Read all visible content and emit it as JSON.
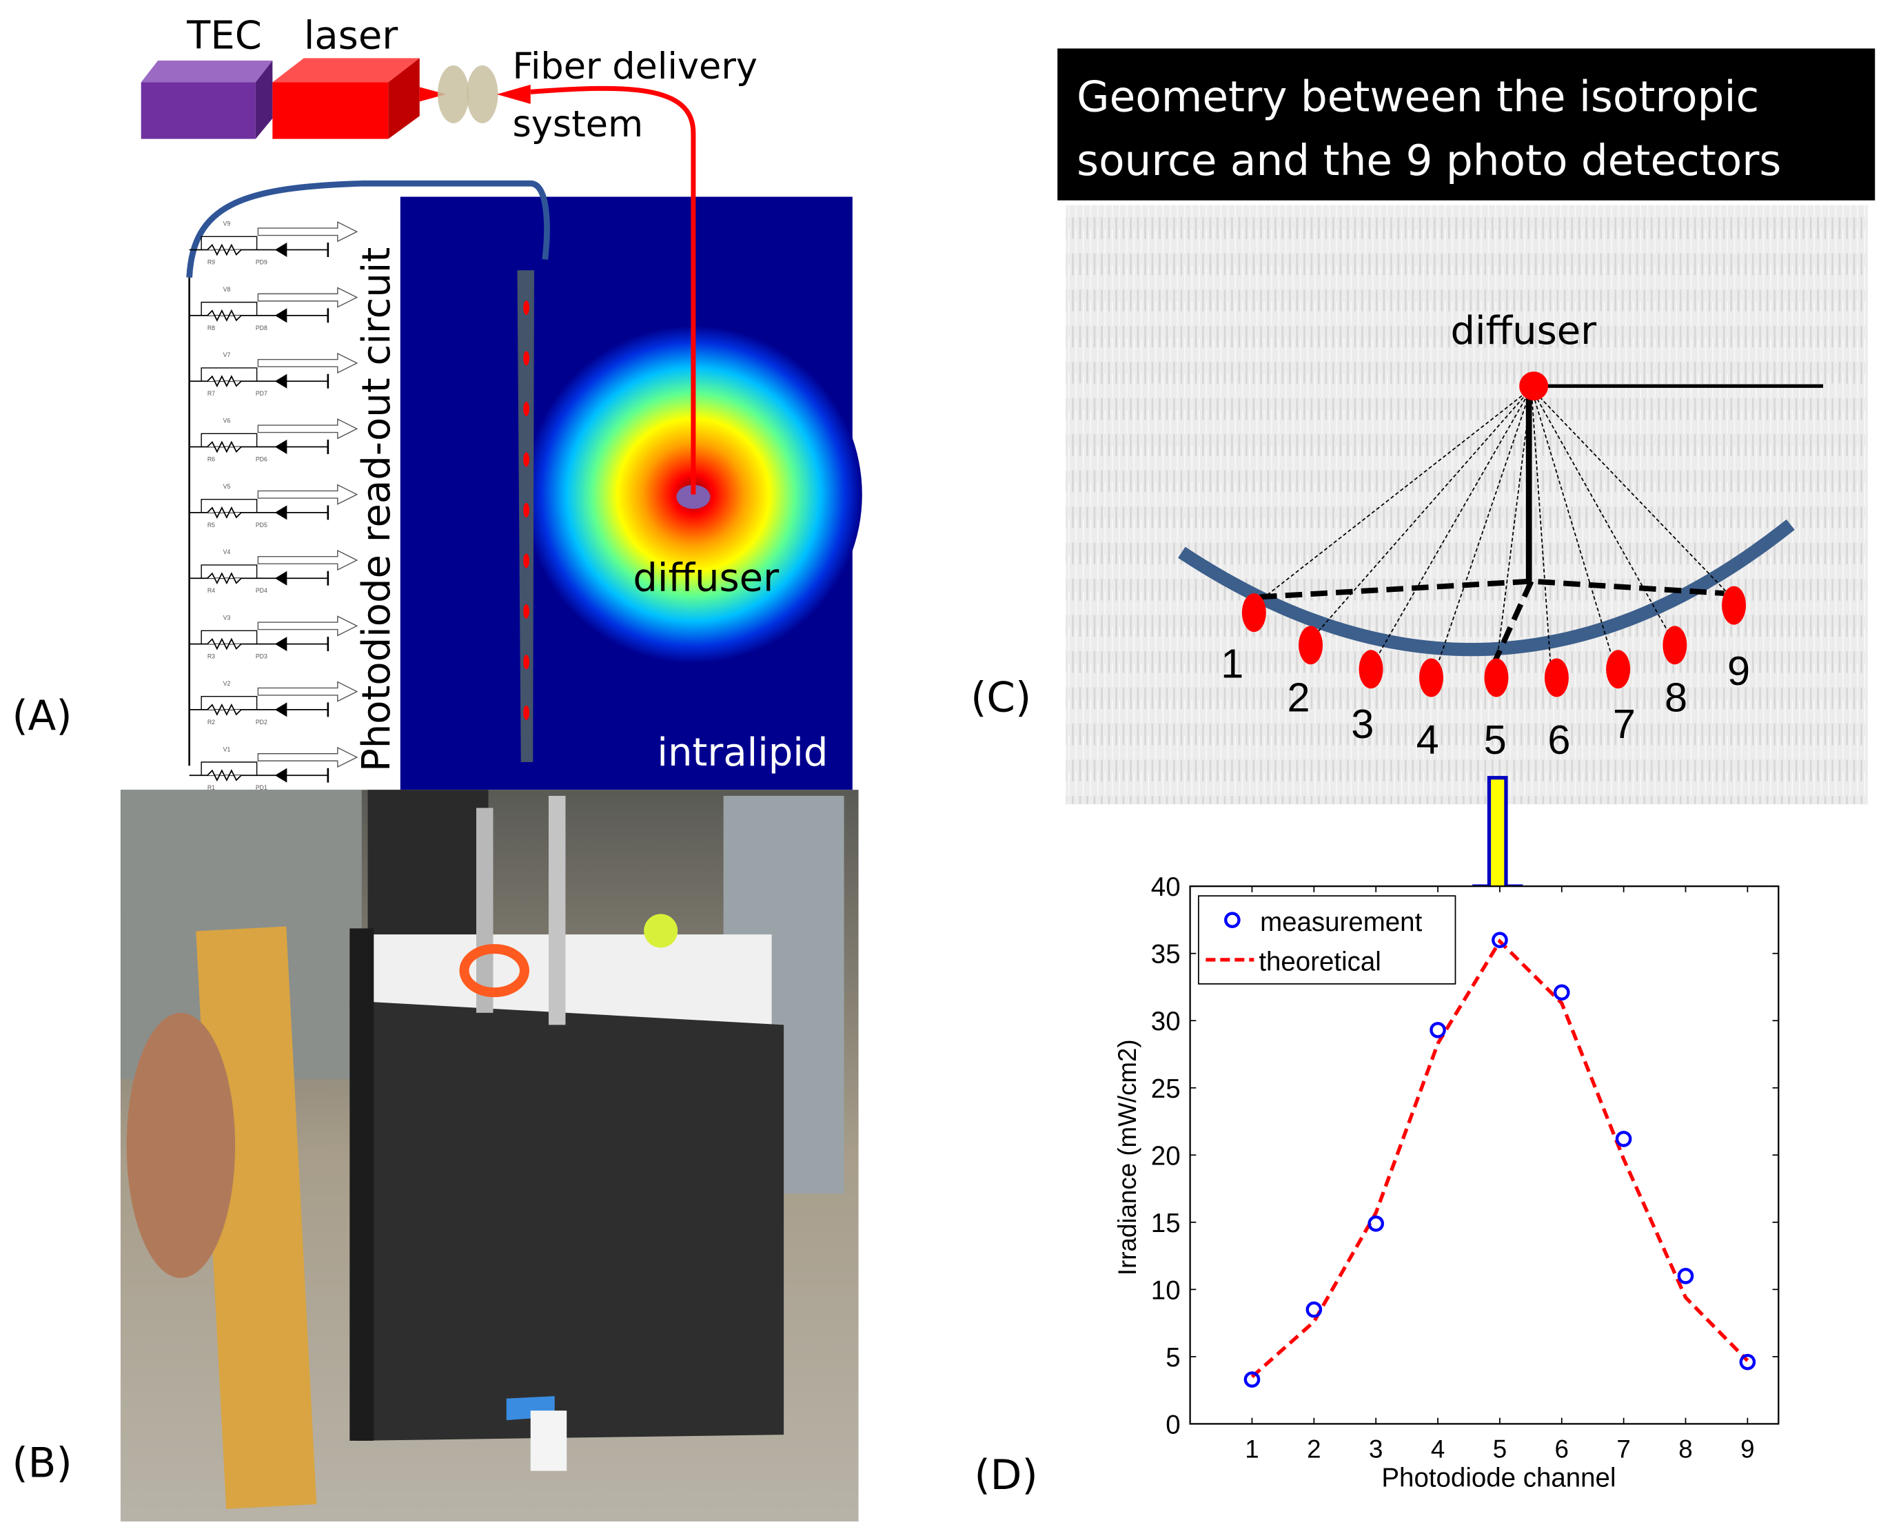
{
  "panel_labels": {
    "a": "(A)",
    "b": "(B)",
    "c": "(C)",
    "d": "(D)"
  },
  "panel_a": {
    "tec_label": "TEC",
    "laser_label": "laser",
    "fiber_label_line1": "Fiber delivery",
    "fiber_label_line2": "system",
    "circuit_label": "Photodiode read-out circuit",
    "diffuser_label": "diffuser",
    "medium_label": "intralipid",
    "circuit_rows": [
      {
        "v": "V9",
        "r": "R9",
        "pd": "PD9"
      },
      {
        "v": "V8",
        "r": "R8",
        "pd": "PD8"
      },
      {
        "v": "V7",
        "r": "R7",
        "pd": "PD7"
      },
      {
        "v": "V6",
        "r": "R6",
        "pd": "PD6"
      },
      {
        "v": "V5",
        "r": "R5",
        "pd": "PD5"
      },
      {
        "v": "V4",
        "r": "R4",
        "pd": "PD4"
      },
      {
        "v": "V3",
        "r": "R3",
        "pd": "PD3"
      },
      {
        "v": "V2",
        "r": "R2",
        "pd": "PD2"
      },
      {
        "v": "V1",
        "r": "R1",
        "pd": "PD1"
      }
    ],
    "colors": {
      "tec": "#7030a0",
      "laser": "#ff0000",
      "fiber": "#ff0000",
      "cable": "#2f5597",
      "heatmap_bg": "#00008f"
    }
  },
  "panel_c": {
    "title_line1": "Geometry between the isotropic",
    "title_line2": "source and the 9 photo detectors",
    "diffuser_label": "diffuser",
    "detector_labels": [
      "1",
      "2",
      "3",
      "4",
      "5",
      "6",
      "7",
      "8",
      "9"
    ],
    "colors": {
      "detector": "#ff0000",
      "array": "#3c5f8c",
      "arrow_fill": "#ffff00",
      "arrow_stroke": "#0000c0"
    }
  },
  "chart_data": {
    "type": "line",
    "xlabel": "Photodiode channel",
    "ylabel": "Irradiance (mW/cm2)",
    "x": [
      1,
      2,
      3,
      4,
      5,
      6,
      7,
      8,
      9
    ],
    "x_ticks": [
      "1",
      "2",
      "3",
      "4",
      "5",
      "6",
      "7",
      "8",
      "9"
    ],
    "y_ticks": [
      "0",
      "5",
      "10",
      "15",
      "20",
      "25",
      "30",
      "35",
      "40"
    ],
    "xlim": [
      0,
      9.5
    ],
    "ylim": [
      0,
      40
    ],
    "grid": false,
    "legend_position": "top-left",
    "series": [
      {
        "name": "measurement",
        "style": "circle-markers",
        "color": "#0000ff",
        "values": [
          3.3,
          8.5,
          14.9,
          29.3,
          36.0,
          32.1,
          21.2,
          11.0,
          4.6
        ]
      },
      {
        "name": "theoretical",
        "style": "dashed-line",
        "color": "#ff0000",
        "values": [
          3.5,
          7.6,
          15.7,
          28.3,
          35.9,
          31.3,
          19.7,
          9.4,
          4.7
        ]
      }
    ]
  }
}
